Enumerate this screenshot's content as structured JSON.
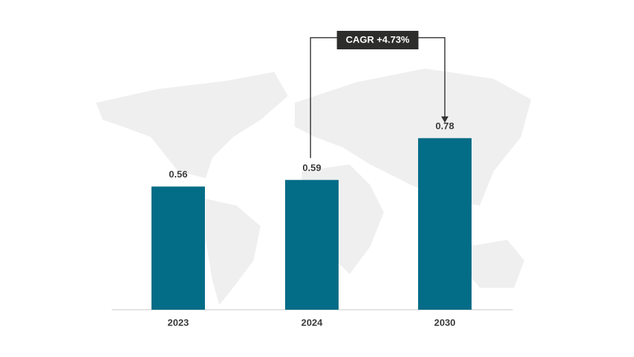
{
  "chart_data": {
    "type": "bar",
    "categories": [
      "2023",
      "2024",
      "2030"
    ],
    "values": [
      0.56,
      0.59,
      0.78
    ],
    "color": "#036c87",
    "ylim": [
      0,
      1
    ],
    "annotation": "CAGR +4.73%"
  }
}
